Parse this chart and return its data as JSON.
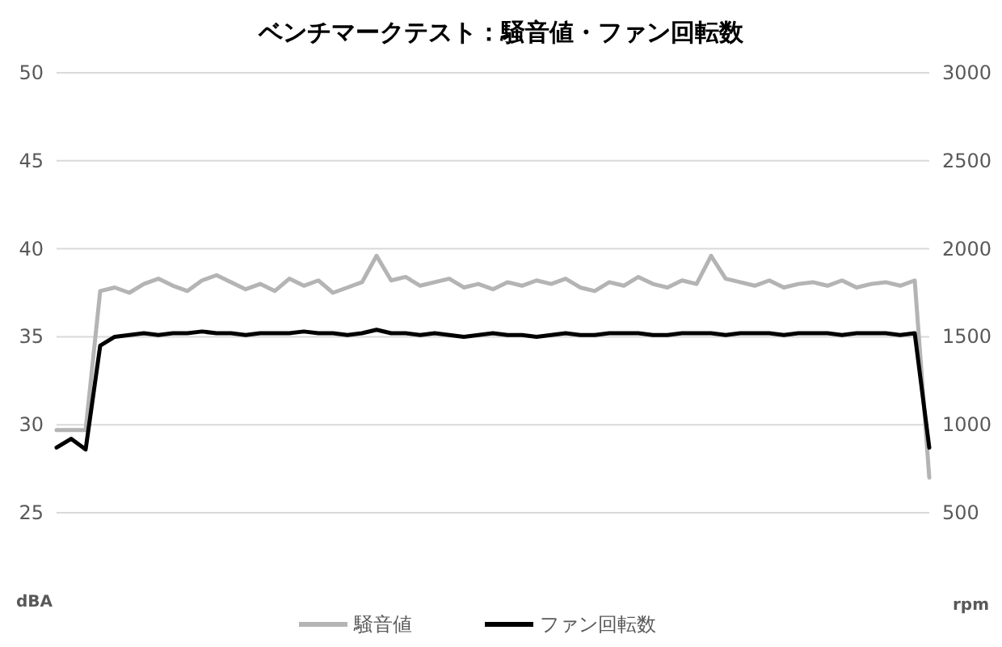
{
  "chart_data": {
    "type": "line",
    "title": "ベンチマークテスト：騒音値・ファン回転数",
    "categories": [
      null,
      null,
      null,
      null,
      null,
      null,
      null,
      null,
      null,
      null,
      null,
      null,
      null,
      null,
      null,
      null,
      null,
      null,
      null,
      null,
      null,
      null,
      null,
      null,
      null,
      null,
      null,
      null,
      null,
      null,
      null,
      null,
      null,
      null,
      null,
      null,
      null,
      null,
      null,
      null,
      null,
      null,
      null,
      null,
      null,
      null,
      null,
      null,
      null,
      null,
      null,
      null,
      null,
      null,
      null,
      null,
      null,
      null,
      null,
      null,
      null
    ],
    "ylabel": "dBA",
    "y2label": "rpm",
    "ylim": [
      25,
      50
    ],
    "yticks": [
      25,
      30,
      35,
      40,
      45,
      50
    ],
    "y2lim": [
      500,
      3000
    ],
    "y2ticks": [
      500,
      1000,
      1500,
      2000,
      2500,
      3000
    ],
    "grid": "y",
    "legend": "bottom",
    "marker": "none",
    "line_style": "solid",
    "series": [
      {
        "name": "騒音値",
        "color": "#b4b4b4",
        "values": [
          29.7,
          29.7,
          29.7,
          37.6,
          37.8,
          37.5,
          38.0,
          38.3,
          37.9,
          37.6,
          38.2,
          38.5,
          38.1,
          37.7,
          38.0,
          37.6,
          38.3,
          37.9,
          38.2,
          37.5,
          37.8,
          38.1,
          39.6,
          38.2,
          38.4,
          37.9,
          38.1,
          38.3,
          37.8,
          38.0,
          37.7,
          38.1,
          37.9,
          38.2,
          38.0,
          38.3,
          37.8,
          37.6,
          38.1,
          37.9,
          38.4,
          38.0,
          37.8,
          38.2,
          38.0,
          39.6,
          38.3,
          38.1,
          37.9,
          38.2,
          37.8,
          38.0,
          38.1,
          37.9,
          38.2,
          37.8,
          38.0,
          38.1,
          37.9,
          38.2,
          27.0
        ]
      },
      {
        "name": "ファン回転数",
        "color": "#000000",
        "axis": "y2",
        "values": [
          870,
          920,
          860,
          1450,
          1500,
          1510,
          1520,
          1510,
          1520,
          1520,
          1530,
          1520,
          1520,
          1510,
          1520,
          1520,
          1520,
          1530,
          1520,
          1520,
          1510,
          1520,
          1540,
          1520,
          1520,
          1510,
          1520,
          1510,
          1500,
          1510,
          1520,
          1510,
          1510,
          1500,
          1510,
          1520,
          1510,
          1510,
          1520,
          1520,
          1520,
          1510,
          1510,
          1520,
          1520,
          1520,
          1510,
          1520,
          1520,
          1520,
          1510,
          1520,
          1520,
          1520,
          1510,
          1520,
          1520,
          1520,
          1510,
          1520,
          870
        ]
      }
    ]
  }
}
